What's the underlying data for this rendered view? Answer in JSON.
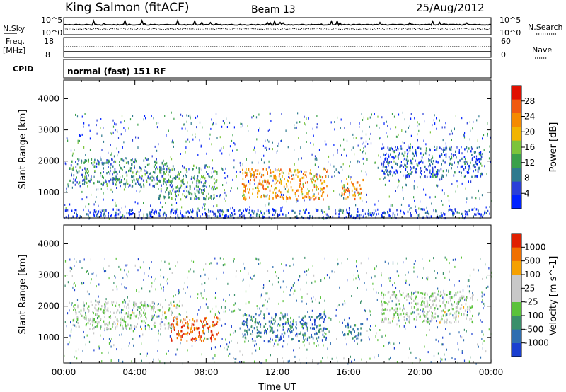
{
  "header": {
    "station": "King Salmon (fitACF)",
    "beam": "Beam 13",
    "date": "25/Aug/2012"
  },
  "aux": {
    "nsky_label": "N.Sky",
    "nsky_ticks": [
      "10^5",
      "10^0"
    ],
    "nsearch_label": "N.Search",
    "nsearch_ticks": [
      "10^5",
      "10^0"
    ],
    "freq_label": "Freq.",
    "freq_unit": "[MHz]",
    "freq_ticks": [
      "18",
      "8"
    ],
    "nave_label": "Nave",
    "nave_ticks": [
      "60",
      "0"
    ],
    "cpid_label": "CPID",
    "cpid_text": "normal (fast) 151 RF"
  },
  "chart_data": [
    {
      "type": "heatmap",
      "name": "power",
      "ylabel": "Slant Range [km]",
      "xlabel": "",
      "ylim": [
        180,
        4600
      ],
      "yticks": [
        1000,
        2000,
        3000,
        4000
      ],
      "colorbar": {
        "label": "Power [dB]",
        "ticks": [
          4,
          8,
          12,
          16,
          20,
          24,
          28
        ],
        "tick_labels": [
          "4",
          "8",
          "12",
          "16",
          "20",
          "24",
          "28"
        ],
        "colors": [
          "#0022ff",
          "#2a3fd8",
          "#2f7a8e",
          "#3aa04a",
          "#7cc43a",
          "#f2b400",
          "#f58a00",
          "#f05a10",
          "#e01000"
        ]
      },
      "regions": [
        {
          "t0": 0.3,
          "t1": 5.8,
          "r0": 1200,
          "r1": 2100,
          "level": 0.3
        },
        {
          "t0": 5.2,
          "t1": 8.6,
          "r0": 800,
          "r1": 1900,
          "level": 0.35
        },
        {
          "t0": 10.0,
          "t1": 14.8,
          "r0": 800,
          "r1": 1800,
          "level": 0.7
        },
        {
          "t0": 15.6,
          "t1": 16.8,
          "r0": 800,
          "r1": 1500,
          "level": 0.7
        },
        {
          "t0": 17.8,
          "t1": 23.5,
          "r0": 1500,
          "r1": 2500,
          "level": 0.2
        },
        {
          "t0": 0.0,
          "t1": 24.0,
          "r0": 200,
          "r1": 500,
          "level": 0.15
        }
      ]
    },
    {
      "type": "heatmap",
      "name": "velocity",
      "ylabel": "Slant Range [km]",
      "xlabel": "Time UT",
      "ylim": [
        180,
        4600
      ],
      "yticks": [
        1000,
        2000,
        3000,
        4000
      ],
      "xticks": [
        "00:00",
        "04:00",
        "08:00",
        "12:00",
        "16:00",
        "20:00",
        "00:00"
      ],
      "colorbar": {
        "label": "Velocity [m s^-1]",
        "tick_labels": [
          "1000",
          "500",
          "100",
          "25",
          "-25",
          "-100",
          "-500",
          "-1000"
        ],
        "colors": [
          "#1a3fd0",
          "#2f6eb0",
          "#3a8f6a",
          "#5ac23a",
          "#c8c8c8",
          "#c8c8c8",
          "#f5a000",
          "#f07000",
          "#e02000"
        ]
      },
      "regions": [
        {
          "t0": 0.5,
          "t1": 6.5,
          "r0": 1300,
          "r1": 2200,
          "level": 0.5
        },
        {
          "t0": 6.0,
          "t1": 8.7,
          "r0": 900,
          "r1": 1700,
          "level": 0.9
        },
        {
          "t0": 10.0,
          "t1": 14.8,
          "r0": 900,
          "r1": 1800,
          "level": 0.2
        },
        {
          "t0": 15.6,
          "t1": 16.8,
          "r0": 900,
          "r1": 1500,
          "level": 0.2
        },
        {
          "t0": 17.8,
          "t1": 23.0,
          "r0": 1500,
          "r1": 2500,
          "level": 0.5
        }
      ]
    }
  ]
}
